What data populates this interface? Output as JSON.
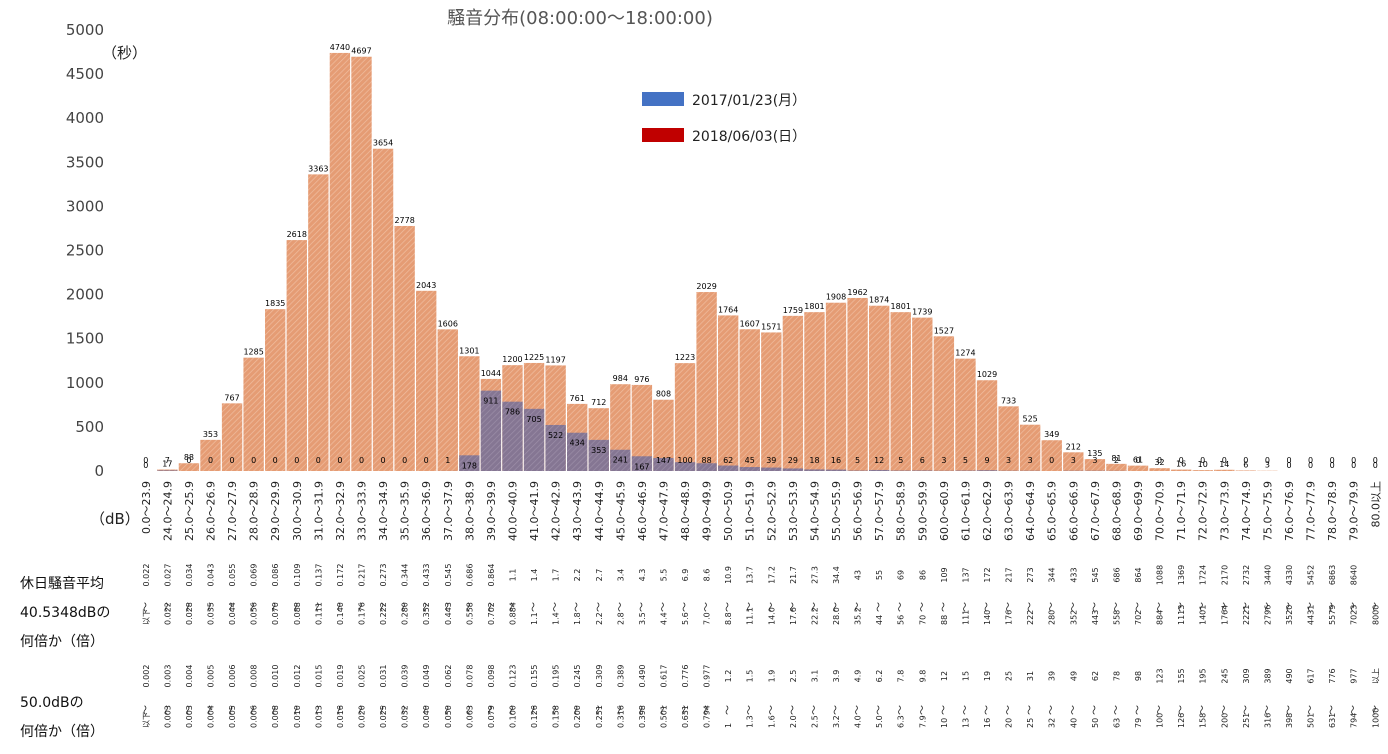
{
  "chart_data": {
    "type": "bar",
    "title": "騒音分布(08:00:00～18:00:00)",
    "ylabel": "（秒）",
    "xlabel": "（dB）",
    "ylim": [
      0,
      5000
    ],
    "yticks": [
      0,
      500,
      1000,
      1500,
      2000,
      2500,
      3000,
      3500,
      4000,
      4500,
      5000
    ],
    "legend_position": "top-center",
    "categories": [
      "0.0～23.9",
      "24.0～24.9",
      "25.0～25.9",
      "26.0～26.9",
      "27.0～27.9",
      "28.0～28.9",
      "29.0～29.9",
      "30.0～30.9",
      "31.0～31.9",
      "32.0～32.9",
      "33.0～33.9",
      "34.0～34.9",
      "35.0～35.9",
      "36.0～36.9",
      "37.0～37.9",
      "38.0～38.9",
      "39.0～39.9",
      "40.0～40.9",
      "41.0～41.9",
      "42.0～42.9",
      "43.0～43.9",
      "44.0～44.9",
      "45.0～45.9",
      "46.0～46.9",
      "47.0～47.9",
      "48.0～48.9",
      "49.0～49.9",
      "50.0～50.9",
      "51.0～51.9",
      "52.0～52.9",
      "53.0～53.9",
      "54.0～54.9",
      "55.0～55.9",
      "56.0～56.9",
      "57.0～57.9",
      "58.0～58.9",
      "59.0～59.9",
      "60.0～60.9",
      "61.0～61.9",
      "62.0～62.9",
      "63.0～63.9",
      "64.0～64.9",
      "65.0～65.9",
      "66.0～66.9",
      "67.0～67.9",
      "68.0～68.9",
      "69.0～69.9",
      "70.0～70.9",
      "71.0～71.9",
      "72.0～72.9",
      "73.0～73.9",
      "74.0～74.9",
      "75.0～75.9",
      "76.0～76.9",
      "77.0～77.9",
      "78.0～78.9",
      "79.0～79.9",
      "80.0以上"
    ],
    "series": [
      {
        "name": "2017/01/23(月）",
        "color": "#4472c4",
        "values": [
          0,
          7,
          0,
          0,
          0,
          0,
          0,
          0,
          0,
          0,
          0,
          0,
          0,
          0,
          1,
          178,
          911,
          786,
          705,
          522,
          434,
          353,
          241,
          167,
          147,
          100,
          88,
          62,
          45,
          39,
          29,
          18,
          16,
          5,
          12,
          5,
          6,
          3,
          5,
          9,
          3,
          3,
          0,
          3,
          3,
          2,
          0,
          0,
          0,
          0,
          0,
          0,
          0,
          0,
          0,
          0,
          0,
          0
        ],
        "labels": [
          "0",
          "7",
          "0",
          "0",
          "0",
          "0",
          "0",
          "0",
          "0",
          "0",
          "0",
          "0",
          "0",
          "0",
          "1",
          "178",
          "911",
          "786",
          "705",
          "522",
          "434",
          "353",
          "241",
          "167",
          "147",
          "100",
          "88",
          "62",
          "45",
          "39",
          "29",
          "18",
          "16",
          "5",
          "12",
          "5",
          "6",
          "3",
          "5",
          "9",
          "3",
          "3",
          "0",
          "3",
          "3",
          "2",
          "0",
          "0",
          "0",
          "0",
          "0",
          "0",
          "0",
          "0",
          "0",
          "0",
          "0",
          "0"
        ]
      },
      {
        "name": "2018/06/03(日）",
        "color": "#c00000",
        "values": [
          0,
          17,
          88,
          353,
          767,
          1285,
          1835,
          2618,
          3363,
          4740,
          4697,
          3654,
          2778,
          2043,
          1606,
          1301,
          1044,
          1200,
          1225,
          1197,
          761,
          712,
          984,
          976,
          808,
          1223,
          2029,
          1764,
          1607,
          1571,
          1759,
          1801,
          1908,
          1962,
          1874,
          1801,
          1739,
          1527,
          1274,
          1029,
          733,
          525,
          349,
          212,
          135,
          81,
          61,
          32,
          16,
          10,
          14,
          6,
          3,
          0,
          0,
          0,
          0,
          0
        ],
        "labels": [
          "0",
          "17",
          "88",
          "353",
          "767",
          "1285",
          "1835",
          "2618",
          "3363",
          "4740",
          "4697",
          "3654",
          "2778",
          "2043",
          "1606",
          "1301",
          "1044",
          "1200",
          "1225",
          "1197",
          "761",
          "712",
          "984",
          "976",
          "808",
          "1223",
          "2029",
          "1764",
          "1607",
          "1571",
          "1759",
          "1801",
          "1908",
          "1962",
          "1874",
          "1801",
          "1739",
          "1527",
          "1274",
          "1029",
          "733",
          "525",
          "349",
          "212",
          "135",
          "81",
          "61",
          "32",
          "16",
          "10",
          "14",
          "6",
          "3",
          "0",
          "0",
          "0",
          "0",
          "0"
        ]
      }
    ],
    "rows": [
      {
        "label_lines": [
          "休日騒音平均",
          "40.5348dBの",
          "何倍か（倍）"
        ],
        "upper": [
          "0.022",
          "0.027",
          "0.034",
          "0.043",
          "0.055",
          "0.069",
          "0.086",
          "0.109",
          "0.137",
          "0.172",
          "0.217",
          "0.273",
          "0.344",
          "0.433",
          "0.545",
          "0.686",
          "0.864",
          "1.1",
          "1.4",
          "1.7",
          "2.2",
          "2.7",
          "3.4",
          "4.3",
          "5.5",
          "6.9",
          "8.6",
          "10.9",
          "13.7",
          "17.2",
          "21.7",
          "27.3",
          "34.4",
          "43",
          "55",
          "69",
          "86",
          "109",
          "137",
          "172",
          "217",
          "273",
          "344",
          "433",
          "545",
          "686",
          "864",
          "1088",
          "1369",
          "1724",
          "2170",
          "2732",
          "3440",
          "4330",
          "5452",
          "6863",
          "8640",
          ""
        ],
        "tilde": "～",
        "lower": [
          "以下",
          "0.022",
          "0.028",
          "0.035",
          "0.044",
          "0.056",
          "0.070",
          "0.088",
          "0.111",
          "0.140",
          "0.176",
          "0.222",
          "0.280",
          "0.352",
          "0.443",
          "0.558",
          "0.702",
          "0.884",
          "1.1",
          "1.4",
          "1.8",
          "2.2",
          "2.8",
          "3.5",
          "4.4",
          "5.6",
          "7.0",
          "8.8",
          "11.1",
          "14.0",
          "17.6",
          "22.2",
          "28.0",
          "35.2",
          "44",
          "56",
          "70",
          "88",
          "111",
          "140",
          "176",
          "222",
          "280",
          "352",
          "443",
          "558",
          "702",
          "884",
          "1113",
          "1401",
          "1764",
          "2221",
          "2796",
          "3520",
          "4431",
          "5579",
          "7023",
          "8000"
        ]
      },
      {
        "label_lines": [
          "50.0dBの",
          "何倍か（倍）"
        ],
        "upper": [
          "0.002",
          "0.003",
          "0.004",
          "0.005",
          "0.006",
          "0.008",
          "0.010",
          "0.012",
          "0.015",
          "0.019",
          "0.025",
          "0.031",
          "0.039",
          "0.049",
          "0.062",
          "0.078",
          "0.098",
          "0.123",
          "0.155",
          "0.195",
          "0.245",
          "0.309",
          "0.389",
          "0.490",
          "0.617",
          "0.776",
          "0.977",
          "1.2",
          "1.5",
          "1.9",
          "2.5",
          "3.1",
          "3.9",
          "4.9",
          "6.2",
          "7.8",
          "9.8",
          "12",
          "15",
          "19",
          "25",
          "31",
          "39",
          "49",
          "62",
          "78",
          "98",
          "123",
          "155",
          "195",
          "245",
          "309",
          "389",
          "490",
          "617",
          "776",
          "977",
          "以上"
        ],
        "tilde": "～",
        "lower": [
          "以下",
          "0.003",
          "0.003",
          "0.004",
          "0.005",
          "0.006",
          "0.008",
          "0.010",
          "0.013",
          "0.016",
          "0.020",
          "0.025",
          "0.032",
          "0.040",
          "0.050",
          "0.063",
          "0.079",
          "0.100",
          "0.126",
          "0.158",
          "0.200",
          "0.251",
          "0.316",
          "0.398",
          "0.501",
          "0.631",
          "0.794",
          "1",
          "1.3",
          "1.6",
          "2.0",
          "2.5",
          "3.2",
          "4.0",
          "5.0",
          "6.3",
          "7.9",
          "10",
          "13",
          "16",
          "20",
          "25",
          "32",
          "40",
          "50",
          "63",
          "79",
          "100",
          "126",
          "158",
          "200",
          "251",
          "316",
          "398",
          "501",
          "631",
          "794",
          "1000"
        ]
      }
    ]
  }
}
